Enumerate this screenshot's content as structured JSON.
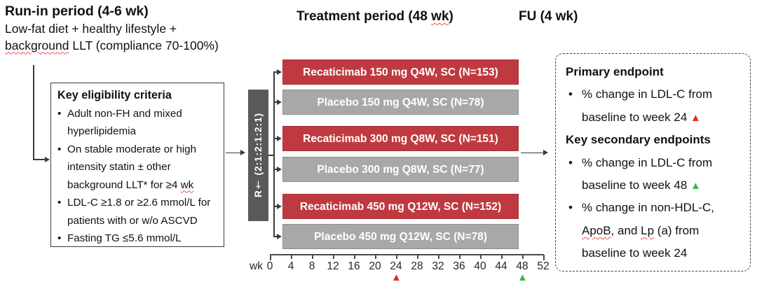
{
  "phases": {
    "run_in": {
      "title": "Run-in period (4-6 wk)",
      "subtitle_lines": [
        {
          "segs": [
            {
              "t": "Low-fat diet + healthy lifestyle +"
            }
          ]
        },
        {
          "segs": [
            {
              "t": "background",
              "sq": true
            },
            {
              "t": " LLT (compliance 70-100%)"
            }
          ]
        }
      ]
    },
    "treatment": {
      "title_segs": [
        {
          "t": "Treatment period (48 "
        },
        {
          "t": "wk",
          "sq": true
        },
        {
          "t": ")"
        }
      ]
    },
    "follow_up": {
      "title": "FU (4 wk)"
    }
  },
  "eligibility_box": {
    "lines": [
      {
        "style": "h",
        "segs": [
          {
            "t": "Key eligibility criteria"
          }
        ]
      },
      {
        "style": "b",
        "segs": [
          {
            "t": "Adult non-FH and mixed"
          }
        ]
      },
      {
        "style": "c",
        "segs": [
          {
            "t": "hyperlipidemia"
          }
        ]
      },
      {
        "style": "b",
        "segs": [
          {
            "t": "On stable moderate or high"
          }
        ]
      },
      {
        "style": "c",
        "segs": [
          {
            "t": "intensity statin ± other"
          }
        ]
      },
      {
        "style": "c",
        "segs": [
          {
            "t": "background LLT* for ≥4 "
          },
          {
            "t": "wk",
            "sq": true
          }
        ]
      },
      {
        "style": "b",
        "segs": [
          {
            "t": "LDL-C ≥1.8 or ≥2.6 mmol/L for"
          }
        ]
      },
      {
        "style": "c",
        "segs": [
          {
            "t": "patients with or w/o ASCVD"
          }
        ]
      },
      {
        "style": "b",
        "segs": [
          {
            "t": "Fasting TG ≤5.6 mmol/L"
          }
        ]
      }
    ]
  },
  "randomization": {
    "label": "R† (2:1:2:1:2:1)"
  },
  "arms": [
    {
      "label": "Recaticimab 150 mg Q4W, SC (N=153)",
      "type": "active"
    },
    {
      "label": "Placebo 150 mg Q4W, SC (N=78)",
      "type": "placebo"
    },
    {
      "label": "Recaticimab 300 mg Q8W, SC (N=151)",
      "type": "active"
    },
    {
      "label": "Placebo 300 mg Q8W, SC (N=77)",
      "type": "placebo"
    },
    {
      "label": "Recaticimab 450 mg Q12W, SC (N=152)",
      "type": "active"
    },
    {
      "label": "Placebo 450 mg Q12W, SC (N=78)",
      "type": "placebo"
    }
  ],
  "timeline": {
    "unit_label": "wk",
    "tick_labels": [
      "0",
      "4",
      "8",
      "12",
      "16",
      "20",
      "24",
      "28",
      "32",
      "36",
      "40",
      "44",
      "48",
      "52"
    ],
    "markers": [
      {
        "week": 24,
        "color_name": "red"
      },
      {
        "week": 48,
        "color_name": "green"
      }
    ]
  },
  "endpoints_box": {
    "lines": [
      {
        "style": "h",
        "segs": [
          {
            "t": "Primary endpoint"
          }
        ]
      },
      {
        "style": "b",
        "segs": [
          {
            "t": "% change in LDL-C from"
          }
        ]
      },
      {
        "style": "c",
        "segs": [
          {
            "t": "baseline to week 24 "
          },
          {
            "tri": "red"
          }
        ]
      },
      {
        "style": "h",
        "segs": [
          {
            "t": "Key secondary endpoints"
          }
        ]
      },
      {
        "style": "b",
        "segs": [
          {
            "t": "% change in LDL-C from"
          }
        ]
      },
      {
        "style": "c",
        "segs": [
          {
            "t": "baseline to week 48 "
          },
          {
            "tri": "green"
          }
        ]
      },
      {
        "style": "b",
        "segs": [
          {
            "t": "% change in non-HDL-C,"
          }
        ]
      },
      {
        "style": "c",
        "segs": [
          {
            "t": "ApoB",
            "sq": true
          },
          {
            "t": ", and "
          },
          {
            "t": "Lp",
            "sq": true
          },
          {
            "t": " (a) from"
          }
        ]
      },
      {
        "style": "c",
        "segs": [
          {
            "t": "baseline to week 24"
          }
        ]
      }
    ]
  },
  "glyphs": {
    "bullet": "•",
    "triangle": "▲"
  },
  "colors": {
    "active_arm": "#bf3a40",
    "placebo_arm": "#a8a8a8",
    "randomization_box": "#595959",
    "marker_red": "#e8281e",
    "marker_green": "#3cb44a",
    "squiggle": "#ef5350"
  }
}
